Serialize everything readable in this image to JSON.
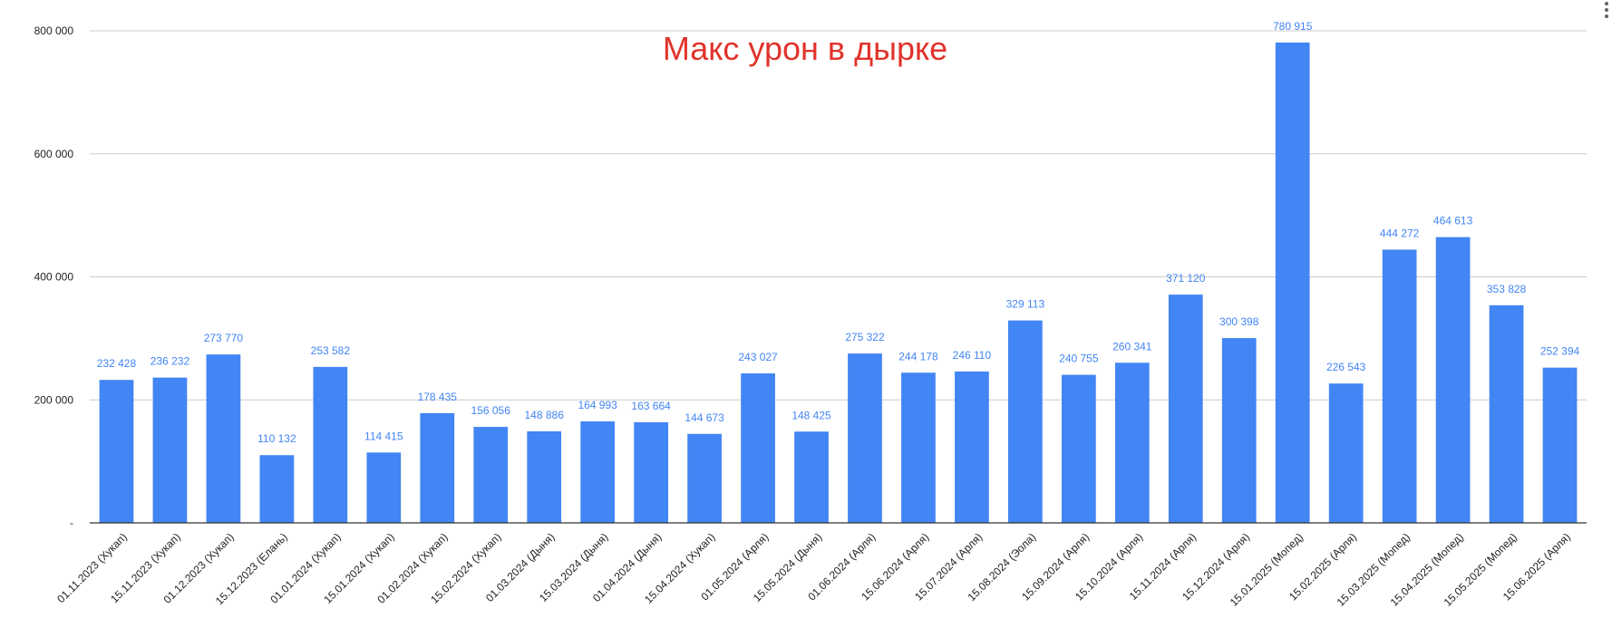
{
  "chart_data": {
    "type": "bar",
    "title": "Макс урон в дырке",
    "ylim": [
      0,
      800000
    ],
    "yticks": [
      0,
      200000,
      400000,
      600000,
      800000
    ],
    "ytick_labels": [
      "-",
      "200 000",
      "400 000",
      "600 000",
      "800 000"
    ],
    "grid": true,
    "legend": "none",
    "bar_color": "#4285f4",
    "title_color": "#e0332b",
    "categories": [
      "01.11.2023 (Хукап)",
      "15.11.2023 (Хукап)",
      "01.12.2023 (Хукап)",
      "15.12.2023 (Елань)",
      "01.01.2024 (Хукап)",
      "15.01.2024 (Хукап)",
      "01.02.2024 (Хукап)",
      "15.02.2024 (Хукап)",
      "01.03.2024 (Дыня)",
      "15.03.2024 (Дыня)",
      "01.04.2024 (Дыня)",
      "15.04.2024 (Хукап)",
      "01.05.2024 (Арля)",
      "15.05.2024 (Дыня)",
      "01.06.2024 (Арля)",
      "15.06.2024 (Арля)",
      "15.07.2024 (Арля)",
      "15.08.2024 (Эола)",
      "15.09.2024 (Арля)",
      "15.10.2024 (Арля)",
      "15.11.2024 (Арля)",
      "15.12.2024 (Арля)",
      "15.01.2025 (Мопед)",
      "15.02.2025 (Арля)",
      "15.03.2025 (Мопед)",
      "15.04.2025 (Мопед)",
      "15.05.2025 (Мопед)",
      "15.06.2025 (Арля)"
    ],
    "values": [
      232428,
      236232,
      273770,
      110132,
      253582,
      114415,
      178435,
      156056,
      148886,
      164993,
      163664,
      144673,
      243027,
      148425,
      275322,
      244178,
      246110,
      329113,
      240755,
      260341,
      371120,
      300398,
      780915,
      226543,
      444272,
      464613,
      353828,
      252394
    ],
    "value_labels": [
      "232 428",
      "236 232",
      "273 770",
      "110 132",
      "253 582",
      "114 415",
      "178 435",
      "156 056",
      "148 886",
      "164 993",
      "163 664",
      "144 673",
      "243 027",
      "148 425",
      "275 322",
      "244 178",
      "246 110",
      "329 113",
      "240 755",
      "260 341",
      "371 120",
      "300 398",
      "780 915",
      "226 543",
      "444 272",
      "464 613",
      "353 828",
      "252 394"
    ]
  }
}
